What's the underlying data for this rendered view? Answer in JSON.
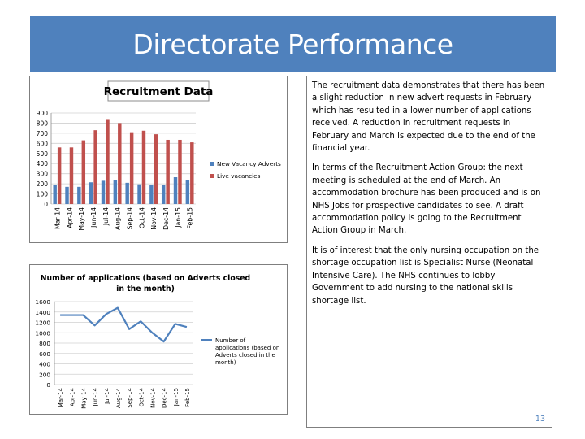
{
  "slide": {
    "title": "Directorate Performance",
    "page_number": "13",
    "colors": {
      "title_bg": "#4f81bd",
      "title_text": "#ffffff",
      "series_blue": "#4f81bd",
      "series_red": "#c0504d"
    },
    "paragraphs": [
      "The recruitment data demonstrates that there has been a slight reduction in new advert requests in February which has resulted in a lower number of applications received. A reduction in recruitment requests in February and March is expected due to the end of the financial year.",
      "In terms of the Recruitment Action Group: the next meeting is scheduled at the end of March.  An accommodation brochure has been produced and is on NHS Jobs for prospective candidates to see.  A draft accommodation policy is going to the Recruitment Action Group in March.",
      "It is of interest that the only nursing occupation on the shortage occupation list is Specialist Nurse (Neonatal Intensive Care). The NHS continues to lobby Government to add nursing to the national skills shortage list."
    ]
  },
  "chart_data": [
    {
      "type": "bar",
      "title": "Recruitment Data",
      "categories": [
        "Mar-14",
        "Apr-14",
        "May-14",
        "Jun-14",
        "Jul-14",
        "Aug-14",
        "Sep-14",
        "Oct-14",
        "Nov-14",
        "Dec-14",
        "Jan-15",
        "Feb-15"
      ],
      "series": [
        {
          "name": "New Vacancy Adverts",
          "color": "#4f81bd",
          "values": [
            185,
            170,
            170,
            215,
            230,
            240,
            210,
            195,
            190,
            185,
            265,
            240
          ]
        },
        {
          "name": "Live vacancies",
          "color": "#c0504d",
          "values": [
            560,
            560,
            630,
            730,
            840,
            800,
            710,
            725,
            690,
            635,
            635,
            610
          ]
        }
      ],
      "ylim": [
        0,
        900
      ],
      "yticks": [
        "0",
        "100",
        "200",
        "300",
        "400",
        "500",
        "600",
        "700",
        "800",
        "900"
      ],
      "grid": true,
      "legend": "right"
    },
    {
      "type": "line",
      "title": "Number of applications (based on Adverts closed in the month)",
      "categories": [
        "Mar-14",
        "Apr-14",
        "May-14",
        "Jun-14",
        "Jul-14",
        "Aug-14",
        "Sep-14",
        "Oct-14",
        "Nov-14",
        "Dec-14",
        "Jan-15",
        "Feb-15"
      ],
      "series": [
        {
          "name": "Number of applications (based on Adverts closed in the month)",
          "color": "#4f81bd",
          "values": [
            1340,
            1340,
            1340,
            1140,
            1360,
            1480,
            1070,
            1220,
            1000,
            830,
            1170,
            1110
          ]
        }
      ],
      "ylim": [
        0,
        1600
      ],
      "yticks": [
        "0",
        "200",
        "400",
        "600",
        "800",
        "1000",
        "1200",
        "1400",
        "1600"
      ],
      "grid": true,
      "legend": "right"
    }
  ]
}
